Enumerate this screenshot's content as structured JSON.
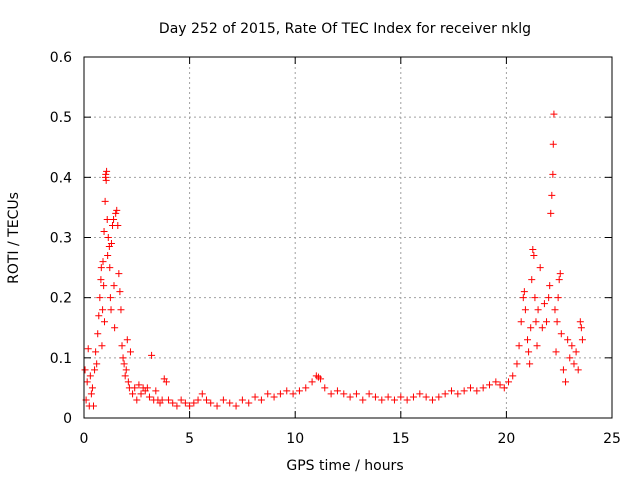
{
  "chart_data": {
    "type": "scatter",
    "title": "Day 252 of 2015, Rate Of TEC Index for receiver nklg",
    "xlabel": "GPS time / hours",
    "ylabel": "ROTI / TECUs",
    "xlim": [
      0,
      25
    ],
    "ylim": [
      0,
      0.6
    ],
    "xticks": [
      0,
      5,
      10,
      15,
      20,
      25
    ],
    "yticks": [
      0,
      0.1,
      0.2,
      0.3,
      0.4,
      0.5,
      0.6
    ],
    "xtick_labels": [
      "0",
      "5",
      "10",
      "15",
      "20",
      "25"
    ],
    "ytick_labels": [
      "0",
      "0.1",
      "0.2",
      "0.3",
      "0.4",
      "0.5",
      "0.6"
    ],
    "grid": true,
    "marker": "+",
    "color": "#ff0000",
    "series": [
      {
        "points": [
          [
            0.05,
            0.08
          ],
          [
            0.1,
            0.03
          ],
          [
            0.15,
            0.06
          ],
          [
            0.2,
            0.115
          ],
          [
            0.25,
            0.02
          ],
          [
            0.3,
            0.07
          ],
          [
            0.35,
            0.04
          ],
          [
            0.4,
            0.05
          ],
          [
            0.45,
            0.02
          ],
          [
            0.5,
            0.08
          ],
          [
            0.55,
            0.11
          ],
          [
            0.6,
            0.09
          ],
          [
            0.65,
            0.14
          ],
          [
            0.7,
            0.17
          ],
          [
            0.75,
            0.2
          ],
          [
            0.8,
            0.23
          ],
          [
            0.82,
            0.25
          ],
          [
            0.85,
            0.12
          ],
          [
            0.88,
            0.18
          ],
          [
            0.9,
            0.26
          ],
          [
            0.93,
            0.22
          ],
          [
            0.95,
            0.31
          ],
          [
            0.97,
            0.16
          ],
          [
            1.0,
            0.36
          ],
          [
            1.02,
            0.4
          ],
          [
            1.03,
            0.405
          ],
          [
            1.05,
            0.395
          ],
          [
            1.07,
            0.41
          ],
          [
            1.1,
            0.33
          ],
          [
            1.12,
            0.27
          ],
          [
            1.15,
            0.3
          ],
          [
            1.2,
            0.285
          ],
          [
            1.22,
            0.25
          ],
          [
            1.25,
            0.2
          ],
          [
            1.28,
            0.18
          ],
          [
            1.3,
            0.29
          ],
          [
            1.35,
            0.32
          ],
          [
            1.4,
            0.33
          ],
          [
            1.42,
            0.22
          ],
          [
            1.45,
            0.15
          ],
          [
            1.5,
            0.34
          ],
          [
            1.55,
            0.345
          ],
          [
            1.6,
            0.32
          ],
          [
            1.65,
            0.24
          ],
          [
            1.7,
            0.21
          ],
          [
            1.75,
            0.18
          ],
          [
            1.8,
            0.12
          ],
          [
            1.85,
            0.1
          ],
          [
            1.9,
            0.09
          ],
          [
            1.95,
            0.07
          ],
          [
            2.0,
            0.08
          ],
          [
            2.05,
            0.13
          ],
          [
            2.1,
            0.06
          ],
          [
            2.15,
            0.05
          ],
          [
            2.2,
            0.11
          ],
          [
            2.3,
            0.04
          ],
          [
            2.4,
            0.05
          ],
          [
            2.5,
            0.03
          ],
          [
            2.6,
            0.055
          ],
          [
            2.7,
            0.04
          ],
          [
            2.8,
            0.05
          ],
          [
            2.9,
            0.045
          ],
          [
            3.0,
            0.05
          ],
          [
            3.1,
            0.035
          ],
          [
            3.2,
            0.104
          ],
          [
            3.3,
            0.03
          ],
          [
            3.4,
            0.045
          ],
          [
            3.5,
            0.03
          ],
          [
            3.6,
            0.025
          ],
          [
            3.7,
            0.03
          ],
          [
            3.8,
            0.065
          ],
          [
            3.9,
            0.06
          ],
          [
            4.0,
            0.03
          ],
          [
            4.2,
            0.025
          ],
          [
            4.4,
            0.02
          ],
          [
            4.6,
            0.03
          ],
          [
            4.8,
            0.025
          ],
          [
            5.0,
            0.02
          ],
          [
            5.2,
            0.025
          ],
          [
            5.4,
            0.03
          ],
          [
            5.6,
            0.04
          ],
          [
            5.8,
            0.03
          ],
          [
            6.0,
            0.025
          ],
          [
            6.3,
            0.02
          ],
          [
            6.6,
            0.03
          ],
          [
            6.9,
            0.025
          ],
          [
            7.2,
            0.02
          ],
          [
            7.5,
            0.03
          ],
          [
            7.8,
            0.025
          ],
          [
            8.1,
            0.035
          ],
          [
            8.4,
            0.03
          ],
          [
            8.7,
            0.04
          ],
          [
            9.0,
            0.035
          ],
          [
            9.3,
            0.04
          ],
          [
            9.6,
            0.045
          ],
          [
            9.9,
            0.04
          ],
          [
            10.2,
            0.045
          ],
          [
            10.5,
            0.05
          ],
          [
            10.8,
            0.06
          ],
          [
            11.0,
            0.07
          ],
          [
            11.1,
            0.068
          ],
          [
            11.2,
            0.065
          ],
          [
            11.4,
            0.05
          ],
          [
            11.7,
            0.04
          ],
          [
            12.0,
            0.045
          ],
          [
            12.3,
            0.04
          ],
          [
            12.6,
            0.035
          ],
          [
            12.9,
            0.04
          ],
          [
            13.2,
            0.03
          ],
          [
            13.5,
            0.04
          ],
          [
            13.8,
            0.035
          ],
          [
            14.1,
            0.03
          ],
          [
            14.4,
            0.035
          ],
          [
            14.7,
            0.03
          ],
          [
            15.0,
            0.035
          ],
          [
            15.3,
            0.03
          ],
          [
            15.6,
            0.035
          ],
          [
            15.9,
            0.04
          ],
          [
            16.2,
            0.035
          ],
          [
            16.5,
            0.03
          ],
          [
            16.8,
            0.035
          ],
          [
            17.1,
            0.04
          ],
          [
            17.4,
            0.045
          ],
          [
            17.7,
            0.04
          ],
          [
            18.0,
            0.045
          ],
          [
            18.3,
            0.05
          ],
          [
            18.6,
            0.045
          ],
          [
            18.9,
            0.05
          ],
          [
            19.2,
            0.055
          ],
          [
            19.5,
            0.06
          ],
          [
            19.7,
            0.055
          ],
          [
            19.9,
            0.05
          ],
          [
            20.1,
            0.06
          ],
          [
            20.3,
            0.07
          ],
          [
            20.5,
            0.09
          ],
          [
            20.6,
            0.12
          ],
          [
            20.7,
            0.16
          ],
          [
            20.8,
            0.2
          ],
          [
            20.85,
            0.21
          ],
          [
            20.9,
            0.18
          ],
          [
            21.0,
            0.13
          ],
          [
            21.05,
            0.11
          ],
          [
            21.1,
            0.09
          ],
          [
            21.15,
            0.15
          ],
          [
            21.2,
            0.23
          ],
          [
            21.25,
            0.28
          ],
          [
            21.3,
            0.27
          ],
          [
            21.35,
            0.2
          ],
          [
            21.4,
            0.16
          ],
          [
            21.45,
            0.12
          ],
          [
            21.5,
            0.18
          ],
          [
            21.6,
            0.25
          ],
          [
            21.7,
            0.15
          ],
          [
            21.8,
            0.19
          ],
          [
            21.9,
            0.16
          ],
          [
            22.0,
            0.2
          ],
          [
            22.05,
            0.22
          ],
          [
            22.1,
            0.34
          ],
          [
            22.15,
            0.37
          ],
          [
            22.2,
            0.405
          ],
          [
            22.22,
            0.455
          ],
          [
            22.25,
            0.505
          ],
          [
            22.3,
            0.18
          ],
          [
            22.35,
            0.11
          ],
          [
            22.4,
            0.16
          ],
          [
            22.45,
            0.2
          ],
          [
            22.5,
            0.23
          ],
          [
            22.55,
            0.24
          ],
          [
            22.6,
            0.14
          ],
          [
            22.7,
            0.08
          ],
          [
            22.8,
            0.06
          ],
          [
            22.9,
            0.13
          ],
          [
            23.0,
            0.1
          ],
          [
            23.1,
            0.12
          ],
          [
            23.2,
            0.09
          ],
          [
            23.3,
            0.11
          ],
          [
            23.4,
            0.08
          ],
          [
            23.5,
            0.16
          ],
          [
            23.55,
            0.15
          ],
          [
            23.6,
            0.13
          ]
        ]
      }
    ]
  }
}
